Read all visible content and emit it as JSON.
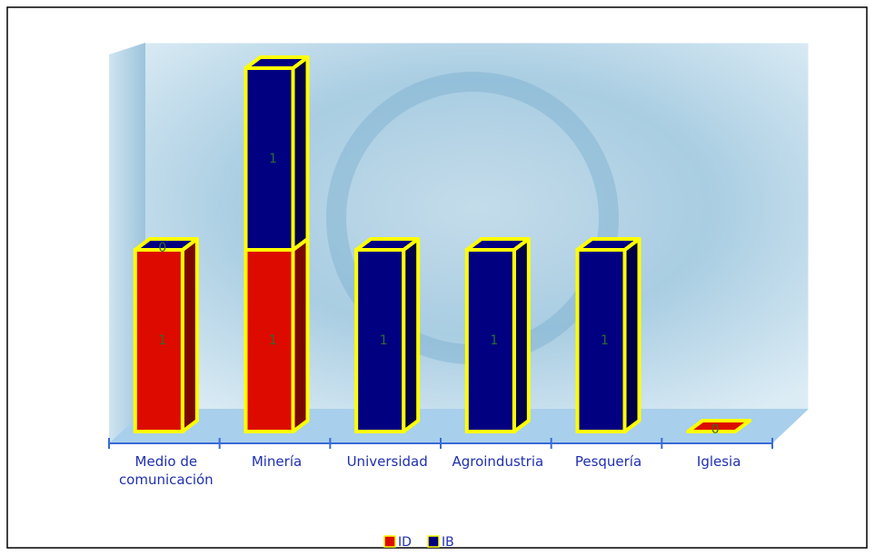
{
  "chart_data": {
    "type": "bar3d_stacked",
    "categories": [
      "Medio de comunicación",
      "Minería",
      "Universidad",
      "Agroindustria",
      "Pesquería",
      "Iglesia"
    ],
    "series": [
      {
        "name": "ID",
        "color": "#dd0a00",
        "values": [
          1,
          1,
          null,
          null,
          null,
          0
        ]
      },
      {
        "name": "IB",
        "color": "#000080",
        "values": [
          0,
          1,
          1,
          1,
          1,
          null
        ]
      }
    ],
    "bar_edge_color": "#ffff00"
  }
}
